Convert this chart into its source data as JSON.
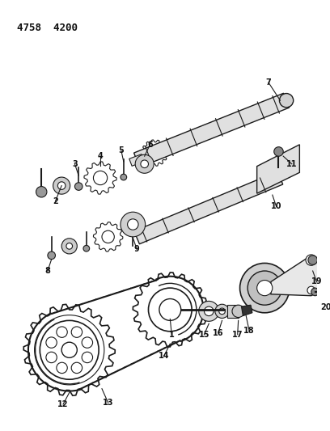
{
  "title": "4758  4200",
  "background_color": "#ffffff",
  "line_color": "#1a1a1a",
  "text_color": "#111111",
  "fig_width": 4.08,
  "fig_height": 5.33,
  "dpi": 100
}
